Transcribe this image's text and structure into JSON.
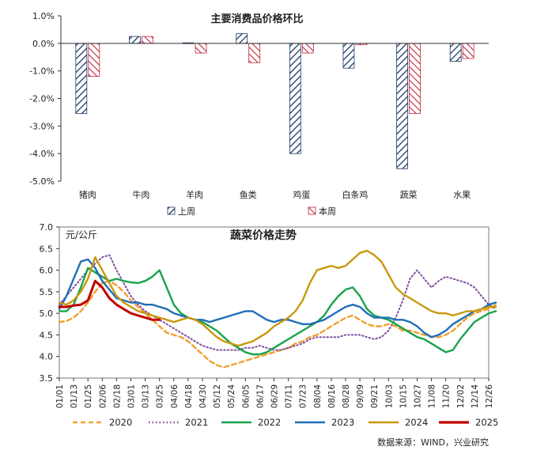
{
  "source_note": "数据来源：WIND，兴业研究",
  "chart_data": [
    {
      "type": "bar",
      "title": "主要消费品价格环比",
      "categories": [
        "猪肉",
        "牛肉",
        "羊肉",
        "鱼类",
        "鸡蛋",
        "白条鸡",
        "蔬菜",
        "水果"
      ],
      "series": [
        {
          "name": "上周",
          "values": [
            -2.55,
            0.25,
            0.02,
            0.35,
            -4.0,
            -0.9,
            -4.55,
            -0.65
          ],
          "color": "#1f3864",
          "pattern": "hatch"
        },
        {
          "name": "本周",
          "values": [
            -1.2,
            0.25,
            -0.35,
            -0.7,
            -0.35,
            -0.05,
            -2.55,
            -0.55
          ],
          "color": "#c0273c",
          "pattern": "hatch"
        }
      ],
      "y_ticks": [
        "1.0%",
        "0.0%",
        "-1.0%",
        "-2.0%",
        "-3.0%",
        "-4.0%",
        "-5.0%"
      ],
      "ylim": [
        -5.0,
        1.0
      ],
      "legend_position": "bottom"
    },
    {
      "type": "line",
      "title": "蔬菜价格走势",
      "ylabel": "元/公斤",
      "ylim": [
        3.5,
        7.0
      ],
      "y_ticks": [
        "7.0",
        "6.5",
        "6.0",
        "5.5",
        "5.0",
        "4.5",
        "4.0",
        "3.5"
      ],
      "x_ticks": [
        "01/01",
        "01/13",
        "01/25",
        "02/06",
        "02/18",
        "03/01",
        "03/13",
        "03/25",
        "04/06",
        "04/18",
        "04/30",
        "05/12",
        "05/24",
        "06/05",
        "06/17",
        "06/29",
        "07/11",
        "07/23",
        "08/04",
        "08/16",
        "08/28",
        "09/09",
        "09/21",
        "10/03",
        "10/15",
        "10/27",
        "11/08",
        "11/20",
        "12/02",
        "12/14",
        "12/26"
      ],
      "legend_position": "bottom",
      "series": [
        {
          "name": "2020",
          "color": "#f0a030",
          "dash": "dash",
          "x": [
            0,
            0.5,
            1,
            1.5,
            2,
            2.5,
            3,
            3.5,
            4,
            4.5,
            5,
            5.5,
            6,
            6.5,
            7,
            7.5,
            8,
            8.5,
            9,
            9.5,
            10,
            10.5,
            11,
            11.5,
            12,
            12.5,
            13,
            13.5,
            14,
            14.5,
            15,
            15.5,
            16,
            16.5,
            17,
            17.5,
            18,
            18.5,
            19,
            19.5,
            20,
            20.5,
            21,
            21.5,
            22,
            22.5,
            23,
            23.5,
            24,
            24.5,
            25,
            25.5,
            26,
            26.5,
            27,
            27.5,
            28,
            28.5,
            29,
            29.5,
            30,
            30.5
          ],
          "y": [
            4.8,
            4.82,
            4.9,
            5.05,
            5.25,
            5.5,
            5.7,
            5.75,
            5.65,
            5.5,
            5.3,
            5.15,
            5.0,
            4.85,
            4.7,
            4.55,
            4.5,
            4.45,
            4.35,
            4.2,
            4.05,
            3.9,
            3.8,
            3.75,
            3.8,
            3.85,
            3.9,
            3.95,
            4.0,
            4.05,
            4.1,
            4.15,
            4.2,
            4.3,
            4.35,
            4.45,
            4.5,
            4.6,
            4.7,
            4.8,
            4.9,
            4.95,
            4.85,
            4.75,
            4.7,
            4.7,
            4.75,
            4.7,
            4.6,
            4.6,
            4.55,
            4.5,
            4.45,
            4.45,
            4.5,
            4.6,
            4.75,
            4.9,
            5.0,
            5.05,
            5.1,
            5.2
          ]
        },
        {
          "name": "2021",
          "color": "#7f4fa0",
          "dash": "dot",
          "x": [
            0,
            0.5,
            1,
            1.5,
            2,
            2.5,
            3,
            3.5,
            4,
            4.5,
            5,
            5.5,
            6,
            6.5,
            7,
            7.5,
            8,
            8.5,
            9,
            9.5,
            10,
            10.5,
            11,
            11.5,
            12,
            12.5,
            13,
            13.5,
            14,
            14.5,
            15,
            15.5,
            16,
            16.5,
            17,
            17.5,
            18,
            18.5,
            19,
            19.5,
            20,
            20.5,
            21,
            21.5,
            22,
            22.5,
            23,
            23.5,
            24,
            24.5,
            25,
            25.5,
            26,
            26.5,
            27,
            27.5,
            28,
            28.5,
            29,
            29.5,
            30,
            30.5
          ],
          "y": [
            5.2,
            5.4,
            5.6,
            5.8,
            6.0,
            6.15,
            6.3,
            6.35,
            6.0,
            5.7,
            5.4,
            5.2,
            5.05,
            4.95,
            4.85,
            4.75,
            4.65,
            4.55,
            4.45,
            4.35,
            4.25,
            4.2,
            4.15,
            4.15,
            4.15,
            4.15,
            4.2,
            4.2,
            4.25,
            4.2,
            4.15,
            4.15,
            4.2,
            4.25,
            4.3,
            4.4,
            4.45,
            4.45,
            4.45,
            4.45,
            4.5,
            4.5,
            4.5,
            4.45,
            4.4,
            4.45,
            4.6,
            4.9,
            5.3,
            5.8,
            6.0,
            5.8,
            5.6,
            5.75,
            5.85,
            5.8,
            5.75,
            5.7,
            5.6,
            5.4,
            5.2,
            5.1
          ]
        },
        {
          "name": "2022",
          "color": "#1aa34a",
          "dash": "solid",
          "x": [
            0,
            0.5,
            1,
            1.5,
            2,
            2.5,
            3,
            3.5,
            4,
            4.5,
            5,
            5.5,
            6,
            6.5,
            7,
            7.5,
            8,
            8.5,
            9,
            9.5,
            10,
            10.5,
            11,
            11.5,
            12,
            12.5,
            13,
            13.5,
            14,
            14.5,
            15,
            15.5,
            16,
            16.5,
            17,
            17.5,
            18,
            18.5,
            19,
            19.5,
            20,
            20.5,
            21,
            21.5,
            22,
            22.5,
            23,
            23.5,
            24,
            24.5,
            25,
            25.5,
            26,
            26.5,
            27,
            27.5,
            28,
            28.5,
            29,
            29.5,
            30,
            30.5
          ],
          "y": [
            5.05,
            5.05,
            5.2,
            5.6,
            6.05,
            5.95,
            5.85,
            5.75,
            5.8,
            5.75,
            5.72,
            5.7,
            5.75,
            5.85,
            6.0,
            5.6,
            5.2,
            5.0,
            4.9,
            4.85,
            4.8,
            4.7,
            4.6,
            4.45,
            4.3,
            4.2,
            4.1,
            4.05,
            4.05,
            4.1,
            4.2,
            4.3,
            4.4,
            4.5,
            4.6,
            4.7,
            4.8,
            4.95,
            5.2,
            5.4,
            5.55,
            5.6,
            5.4,
            5.1,
            4.95,
            4.9,
            4.85,
            4.75,
            4.65,
            4.55,
            4.45,
            4.4,
            4.3,
            4.2,
            4.1,
            4.15,
            4.4,
            4.6,
            4.8,
            4.9,
            5.0,
            5.05
          ]
        },
        {
          "name": "2023",
          "color": "#1f6fb8",
          "dash": "solid",
          "x": [
            0,
            0.5,
            1,
            1.5,
            2,
            2.5,
            3,
            3.5,
            4,
            4.5,
            5,
            5.5,
            6,
            6.5,
            7,
            7.5,
            8,
            8.5,
            9,
            9.5,
            10,
            10.5,
            11,
            11.5,
            12,
            12.5,
            13,
            13.5,
            14,
            14.5,
            15,
            15.5,
            16,
            16.5,
            17,
            17.5,
            18,
            18.5,
            19,
            19.5,
            20,
            20.5,
            21,
            21.5,
            22,
            22.5,
            23,
            23.5,
            24,
            24.5,
            25,
            25.5,
            26,
            26.5,
            27,
            27.5,
            28,
            28.5,
            29,
            29.5,
            30,
            30.5
          ],
          "y": [
            5.1,
            5.4,
            5.8,
            6.2,
            6.25,
            6.05,
            5.75,
            5.55,
            5.35,
            5.3,
            5.25,
            5.25,
            5.2,
            5.2,
            5.15,
            5.1,
            5.0,
            4.95,
            4.9,
            4.85,
            4.85,
            4.8,
            4.85,
            4.9,
            4.95,
            5.0,
            5.05,
            5.05,
            4.95,
            4.85,
            4.8,
            4.85,
            4.85,
            4.8,
            4.75,
            4.75,
            4.8,
            4.85,
            4.95,
            5.05,
            5.15,
            5.2,
            5.15,
            5.0,
            4.9,
            4.9,
            4.9,
            4.85,
            4.85,
            4.8,
            4.7,
            4.55,
            4.45,
            4.5,
            4.6,
            4.75,
            4.85,
            4.95,
            5.05,
            5.1,
            5.2,
            5.25
          ]
        },
        {
          "name": "2024",
          "color": "#c9980e",
          "dash": "solid",
          "x": [
            0,
            0.5,
            1,
            1.5,
            2,
            2.5,
            3,
            3.5,
            4,
            4.5,
            5,
            5.5,
            6,
            6.5,
            7,
            7.5,
            8,
            8.5,
            9,
            9.5,
            10,
            10.5,
            11,
            11.5,
            12,
            12.5,
            13,
            13.5,
            14,
            14.5,
            15,
            15.5,
            16,
            16.5,
            17,
            17.5,
            18,
            18.5,
            19,
            19.5,
            20,
            20.5,
            21,
            21.5,
            22,
            22.5,
            23,
            23.5,
            24,
            24.5,
            25,
            25.5,
            26,
            26.5,
            27,
            27.5,
            28,
            28.5,
            29,
            29.5,
            30,
            30.5
          ],
          "y": [
            5.25,
            5.2,
            5.3,
            5.5,
            5.8,
            6.3,
            6.0,
            5.7,
            5.4,
            5.25,
            5.15,
            5.05,
            5.0,
            4.95,
            4.9,
            4.85,
            4.8,
            4.85,
            4.9,
            4.85,
            4.75,
            4.6,
            4.45,
            4.35,
            4.3,
            4.25,
            4.3,
            4.35,
            4.45,
            4.55,
            4.7,
            4.8,
            4.9,
            5.05,
            5.3,
            5.7,
            6.0,
            6.05,
            6.1,
            6.05,
            6.1,
            6.25,
            6.4,
            6.45,
            6.35,
            6.2,
            5.9,
            5.6,
            5.45,
            5.35,
            5.25,
            5.15,
            5.05,
            5.0,
            5.0,
            4.95,
            5.0,
            5.05,
            5.05,
            5.1,
            5.15,
            5.15
          ]
        },
        {
          "name": "2025",
          "color": "#c00000",
          "dash": "solid",
          "x": [
            0,
            0.5,
            1,
            1.5,
            2,
            2.5,
            3,
            3.5,
            4,
            4.5,
            5,
            5.5,
            6,
            6.5,
            7
          ],
          "y": [
            5.15,
            5.15,
            5.18,
            5.2,
            5.3,
            5.75,
            5.6,
            5.35,
            5.2,
            5.1,
            5.0,
            4.95,
            4.9,
            4.85,
            4.85
          ]
        }
      ]
    }
  ]
}
